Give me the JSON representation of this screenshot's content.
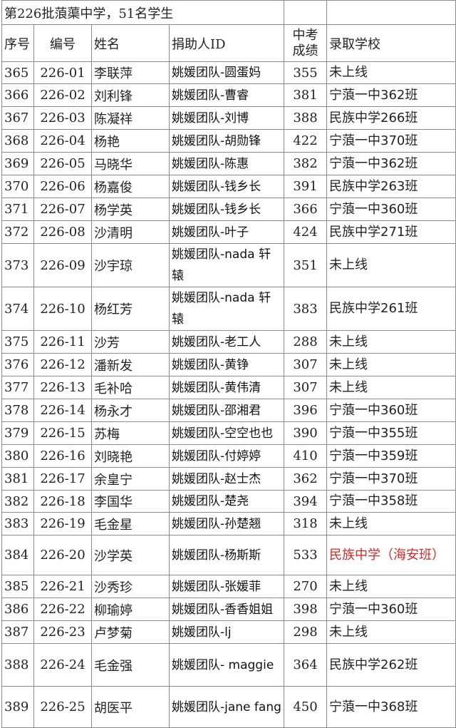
{
  "title": "第226批蒗蕖中学，51名学生",
  "headers": {
    "seq": "序号",
    "code": "编号",
    "name": "姓名",
    "donor": "捐助人ID",
    "score": "中考成绩",
    "school": "录取学校"
  },
  "highlight_color": "#d42a2a",
  "rows": [
    {
      "seq": "365",
      "code": "226-01",
      "name": "李联萍",
      "donor": "姚媛团队-圆蛋妈",
      "score": "355",
      "school": "未上线"
    },
    {
      "seq": "366",
      "code": "226-02",
      "name": "刘利锋",
      "donor": "姚媛团队-曹睿",
      "score": "381",
      "school": "宁蒗一中362班"
    },
    {
      "seq": "367",
      "code": "226-03",
      "name": "陈凝祥",
      "donor": "姚媛团队-刘博",
      "score": "388",
      "school": "民族中学266班"
    },
    {
      "seq": "368",
      "code": "226-04",
      "name": "杨艳",
      "donor": "姚媛团队-胡勋锋",
      "score": "422",
      "school": "宁蒗一中370班"
    },
    {
      "seq": "369",
      "code": "226-05",
      "name": "马晓华",
      "donor": "姚媛团队-陈惠",
      "score": "382",
      "school": "宁蒗一中362班"
    },
    {
      "seq": "370",
      "code": "226-06",
      "name": "杨嘉俊",
      "donor": "姚媛团队-钱乡长",
      "score": "391",
      "school": "民族中学263班"
    },
    {
      "seq": "371",
      "code": "226-07",
      "name": "杨学英",
      "donor": "姚媛团队-钱乡长",
      "score": "366",
      "school": "宁蒗一中360班"
    },
    {
      "seq": "372",
      "code": "226-08",
      "name": "沙清明",
      "donor": "姚媛团队-叶子",
      "score": "424",
      "school": "民族中学271班"
    },
    {
      "seq": "373",
      "code": "226-09",
      "name": "沙宇琼",
      "donor": "姚媛团队-nada 轩辕",
      "score": "351",
      "school": "未上线"
    },
    {
      "seq": "374",
      "code": "226-10",
      "name": "杨红芳",
      "donor": "姚媛团队-nada 轩辕",
      "score": "383",
      "school": "民族中学261班"
    },
    {
      "seq": "375",
      "code": "226-11",
      "name": "沙芳",
      "donor": "姚媛团队-老工人",
      "score": "288",
      "school": "未上线"
    },
    {
      "seq": "376",
      "code": "226-12",
      "name": "潘新发",
      "donor": "姚媛团队-黄铮",
      "score": "307",
      "school": "未上线"
    },
    {
      "seq": "377",
      "code": "226-13",
      "name": "毛补哈",
      "donor": "姚媛团队-黄伟清",
      "score": "307",
      "school": "未上线"
    },
    {
      "seq": "378",
      "code": "226-14",
      "name": "杨永才",
      "donor": "姚媛团队-邵湘君",
      "score": "396",
      "school": "宁蒗一中360班"
    },
    {
      "seq": "379",
      "code": "226-15",
      "name": "苏梅",
      "donor": "姚媛团队-空空也也",
      "score": "390",
      "school": "宁蒗一中355班"
    },
    {
      "seq": "380",
      "code": "226-16",
      "name": "刘晓艳",
      "donor": "姚媛团队-付婷婷",
      "score": "410",
      "school": "宁蒗一中359班"
    },
    {
      "seq": "381",
      "code": "226-17",
      "name": "余皇宁",
      "donor": "姚媛团队-赵士杰",
      "score": "362",
      "school": "宁蒗一中370班"
    },
    {
      "seq": "382",
      "code": "226-18",
      "name": "李国华",
      "donor": "姚媛团队-楚尧",
      "score": "394",
      "school": "宁蒗一中358班"
    },
    {
      "seq": "383",
      "code": "226-19",
      "name": "毛金星",
      "donor": "姚媛团队-孙楚翘",
      "score": "318",
      "school": "未上线"
    },
    {
      "seq": "384",
      "code": "226-20",
      "name": "沙学英",
      "donor": "姚媛团队-杨斯斯",
      "score": "533",
      "school": "民族中学（海安班）",
      "highlight": true
    },
    {
      "seq": "385",
      "code": "226-21",
      "name": "沙秀珍",
      "donor": "姚媛团队-张媛菲",
      "score": "270",
      "school": "未上线"
    },
    {
      "seq": "386",
      "code": "226-22",
      "name": "柳瑜婷",
      "donor": "姚媛团队-香香姐姐",
      "score": "398",
      "school": "宁蒗一中360班"
    },
    {
      "seq": "387",
      "code": "226-23",
      "name": "卢梦菊",
      "donor": "姚媛团队-lj",
      "score": "298",
      "school": "未上线"
    },
    {
      "seq": "388",
      "code": "226-24",
      "name": "毛金强",
      "donor": "姚媛团队- maggie",
      "score": "364",
      "school": "民族中学262班"
    },
    {
      "seq": "389",
      "code": "226-25",
      "name": "胡医平",
      "donor": "姚媛团队-jane fang",
      "score": "450",
      "school": "宁蒗一中368班"
    }
  ]
}
